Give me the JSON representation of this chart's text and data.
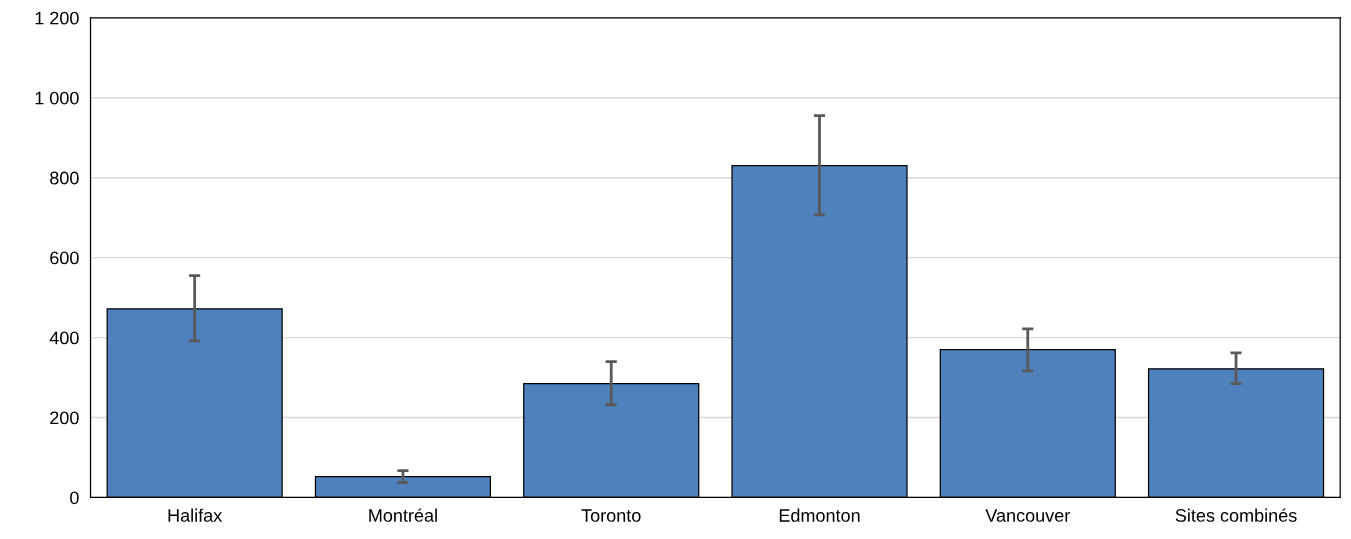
{
  "chart_data": {
    "type": "bar",
    "categories": [
      "Halifax",
      "Montréal",
      "Toronto",
      "Edmonton",
      "Vancouver",
      "Sites combinés"
    ],
    "values": [
      472,
      52,
      285,
      830,
      370,
      322
    ],
    "errors": [
      [
        392,
        555
      ],
      [
        37,
        67
      ],
      [
        232,
        340
      ],
      [
        707,
        955
      ],
      [
        317,
        422
      ],
      [
        285,
        362
      ]
    ],
    "color": "#4f81bd",
    "ylim": [
      0,
      1200
    ],
    "yticks": [
      0,
      200,
      400,
      600,
      800,
      {
        "value": 1000,
        "label": "1 000"
      },
      {
        "value": 1200,
        "label": "1 200"
      }
    ],
    "grid": "y"
  }
}
